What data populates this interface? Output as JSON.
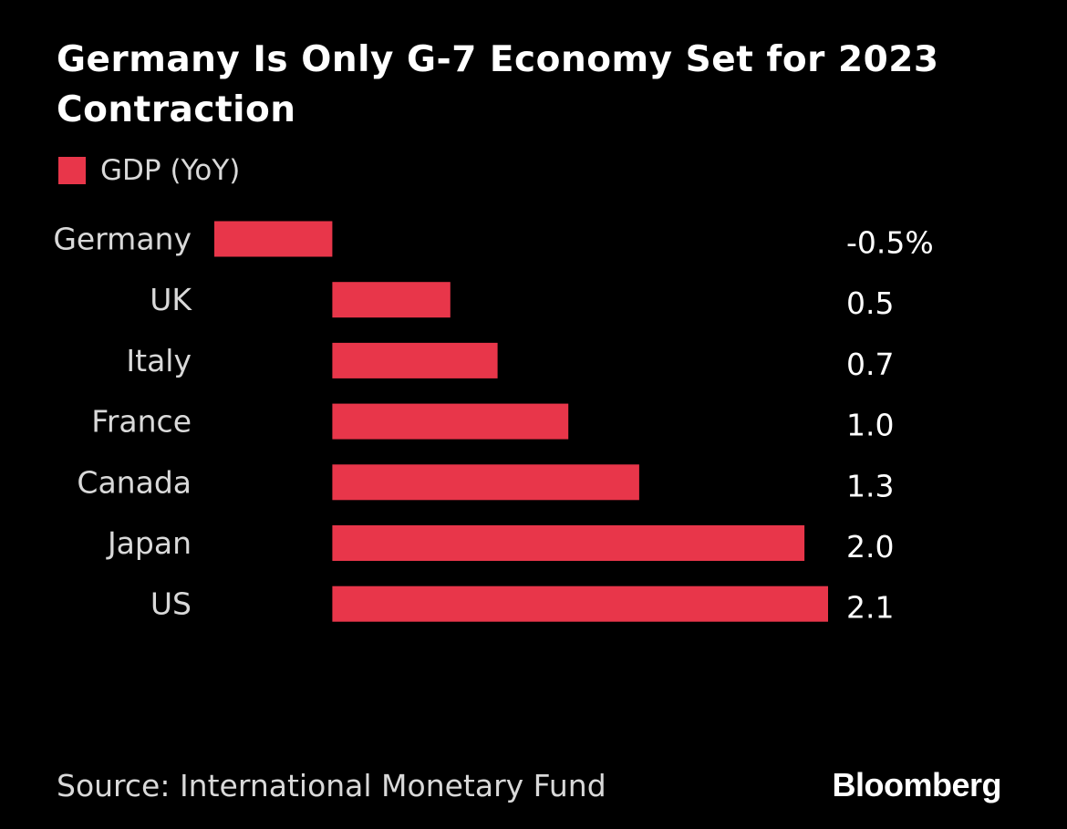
{
  "colors": {
    "background": "#000000",
    "bar": "#e8364a",
    "text": "#ffffff",
    "muted_text": "#d9d9d9"
  },
  "source": "Source: International Monetary Fund",
  "brand": "Bloomberg",
  "chart_data": {
    "type": "bar",
    "orientation": "horizontal",
    "title": "Germany Is Only G-7 Economy Set for 2023 Contraction",
    "legend": [
      "GDP (YoY)"
    ],
    "legend_position": "top-left",
    "categories": [
      "Germany",
      "UK",
      "Italy",
      "France",
      "Canada",
      "Japan",
      "US"
    ],
    "values": [
      -0.5,
      0.5,
      0.7,
      1.0,
      1.3,
      2.0,
      2.1
    ],
    "value_labels": [
      "-0.5%",
      "0.5",
      "0.7",
      "1.0",
      "1.3",
      "2.0",
      "2.1"
    ],
    "xlim": [
      -0.5,
      2.1
    ],
    "grid": false,
    "xlabel": "",
    "ylabel": ""
  }
}
